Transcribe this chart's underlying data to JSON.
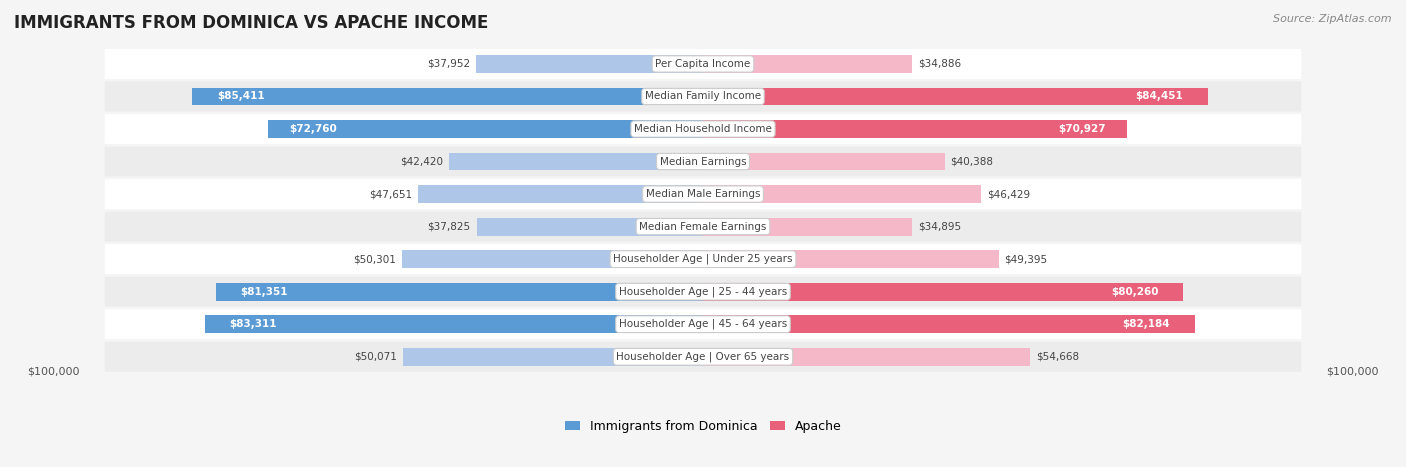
{
  "title": "IMMIGRANTS FROM DOMINICA VS APACHE INCOME",
  "source": "Source: ZipAtlas.com",
  "categories": [
    "Per Capita Income",
    "Median Family Income",
    "Median Household Income",
    "Median Earnings",
    "Median Male Earnings",
    "Median Female Earnings",
    "Householder Age | Under 25 years",
    "Householder Age | 25 - 44 years",
    "Householder Age | 45 - 64 years",
    "Householder Age | Over 65 years"
  ],
  "dominica_values": [
    37952,
    85411,
    72760,
    42420,
    47651,
    37825,
    50301,
    81351,
    83311,
    50071
  ],
  "apache_values": [
    34886,
    84451,
    70927,
    40388,
    46429,
    34895,
    49395,
    80260,
    82184,
    54668
  ],
  "dominica_labels": [
    "$37,952",
    "$85,411",
    "$72,760",
    "$42,420",
    "$47,651",
    "$37,825",
    "$50,301",
    "$81,351",
    "$83,311",
    "$50,071"
  ],
  "apache_labels": [
    "$34,886",
    "$84,451",
    "$70,927",
    "$40,388",
    "$46,429",
    "$34,895",
    "$49,395",
    "$80,260",
    "$82,184",
    "$54,668"
  ],
  "dominica_color_light": "#aec6e8",
  "dominica_color_dark": "#5b9bd5",
  "apache_color_light": "#f4b8c8",
  "apache_color_dark": "#e8607a",
  "max_value": 100000,
  "background_color": "#f5f5f5",
  "row_bg_light": "#ffffff",
  "row_bg_dark": "#ececec",
  "legend_dominica": "Immigrants from Dominica",
  "legend_apache": "Apache",
  "xlabel_left": "$100,000",
  "xlabel_right": "$100,000"
}
